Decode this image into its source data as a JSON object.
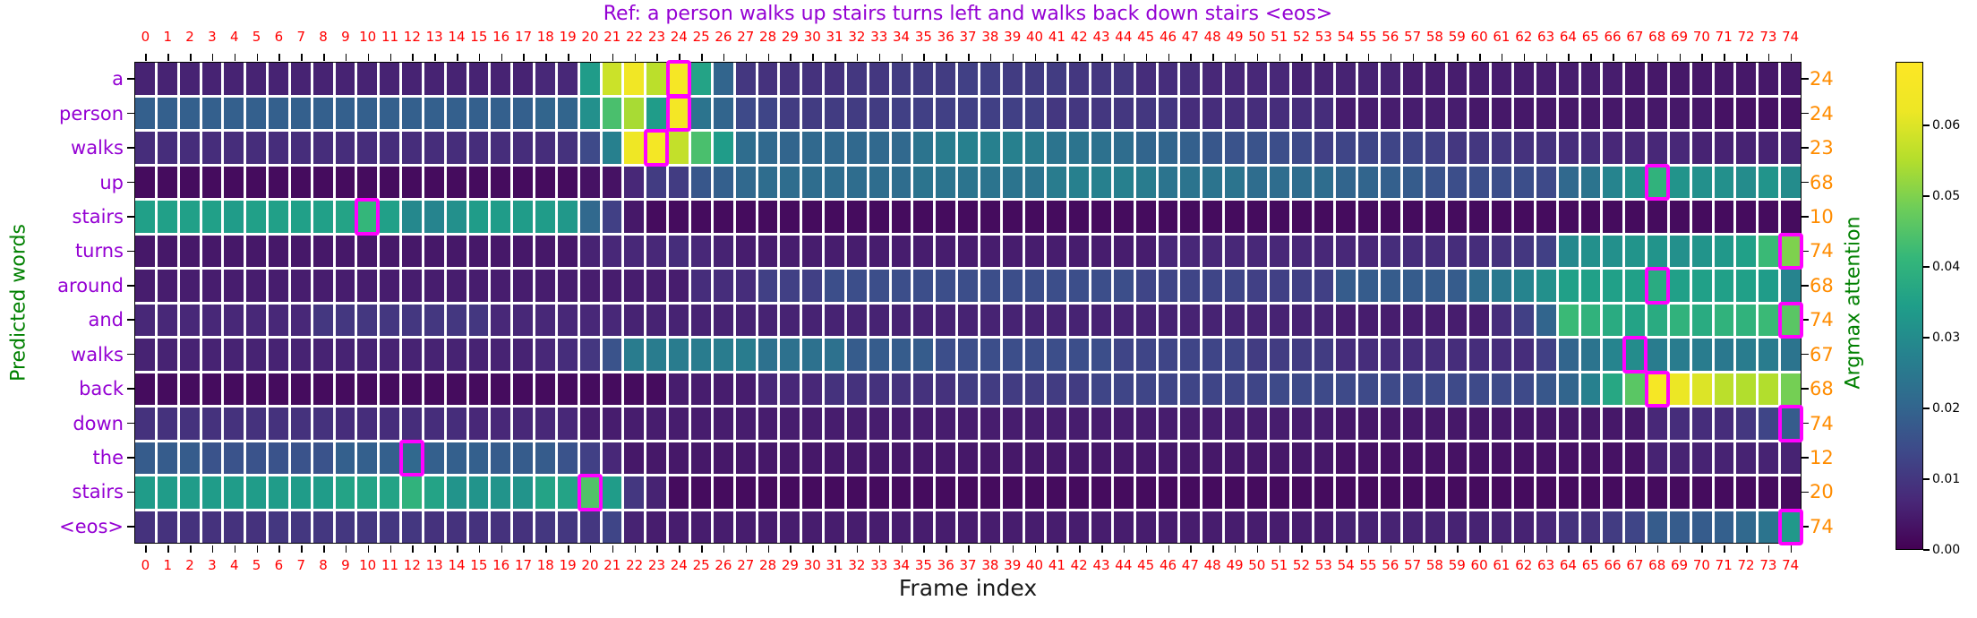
{
  "chart_data": {
    "type": "heatmap",
    "title": "Ref: a person walks up stairs turns left and walks back down stairs <eos>",
    "xlabel": "Frame index",
    "ylabel_left": "Predicted words",
    "ylabel_right": "Argmax attention",
    "predicted_words": [
      "a",
      "person",
      "walks",
      "up",
      "stairs",
      "turns",
      "around",
      "and",
      "walks",
      "back",
      "down",
      "the",
      "stairs",
      "<eos>"
    ],
    "argmax_attention": [
      24,
      24,
      23,
      68,
      10,
      74,
      68,
      74,
      67,
      68,
      74,
      12,
      20,
      74
    ],
    "x_tick_labels": [
      0,
      1,
      2,
      3,
      4,
      5,
      6,
      7,
      8,
      9,
      10,
      11,
      12,
      13,
      14,
      15,
      16,
      17,
      18,
      19,
      20,
      21,
      22,
      23,
      24,
      25,
      26,
      27,
      28,
      29,
      30,
      31,
      32,
      33,
      34,
      35,
      36,
      37,
      38,
      39,
      40,
      41,
      42,
      43,
      44,
      45,
      46,
      47,
      48,
      49,
      50,
      51,
      52,
      53,
      54,
      55,
      56,
      57,
      58,
      59,
      60,
      61,
      62,
      63,
      64,
      65,
      66,
      67,
      68,
      69,
      70,
      71,
      72,
      73,
      74
    ],
    "colorbar": {
      "ticks": [
        "0.00",
        "0.01",
        "0.02",
        "0.03",
        "0.04",
        "0.05",
        "0.06"
      ],
      "vmin": 0.0,
      "vmax": 0.069,
      "colormap": "viridis"
    },
    "colors": {
      "title": "#9400d3",
      "x_ticks": "#ff0000",
      "words": "#9400d3",
      "argmax": "#ff8c00",
      "axis_titles": "#008000",
      "highlight": "#ff00ff",
      "xlabel": "#1a1a1a"
    },
    "matrix": [
      [
        0.006,
        0.006,
        0.006,
        0.006,
        0.006,
        0.006,
        0.006,
        0.006,
        0.006,
        0.006,
        0.006,
        0.006,
        0.006,
        0.006,
        0.006,
        0.006,
        0.006,
        0.006,
        0.007,
        0.007,
        0.034,
        0.058,
        0.064,
        0.056,
        0.066,
        0.036,
        0.02,
        0.01,
        0.009,
        0.009,
        0.009,
        0.009,
        0.01,
        0.01,
        0.011,
        0.011,
        0.011,
        0.012,
        0.012,
        0.011,
        0.011,
        0.011,
        0.01,
        0.01,
        0.01,
        0.008,
        0.008,
        0.008,
        0.007,
        0.007,
        0.007,
        0.007,
        0.006,
        0.006,
        0.006,
        0.006,
        0.006,
        0.005,
        0.005,
        0.005,
        0.005,
        0.005,
        0.005,
        0.005,
        0.005,
        0.005,
        0.005,
        0.004,
        0.004,
        0.004,
        0.004,
        0.004,
        0.004,
        0.004,
        0.004
      ],
      [
        0.019,
        0.019,
        0.019,
        0.019,
        0.019,
        0.019,
        0.019,
        0.019,
        0.019,
        0.019,
        0.019,
        0.019,
        0.019,
        0.019,
        0.019,
        0.019,
        0.019,
        0.019,
        0.02,
        0.02,
        0.031,
        0.044,
        0.054,
        0.034,
        0.065,
        0.024,
        0.02,
        0.014,
        0.013,
        0.011,
        0.011,
        0.011,
        0.011,
        0.011,
        0.012,
        0.012,
        0.012,
        0.012,
        0.012,
        0.012,
        0.012,
        0.01,
        0.01,
        0.01,
        0.01,
        0.01,
        0.01,
        0.008,
        0.008,
        0.008,
        0.008,
        0.008,
        0.008,
        0.008,
        0.005,
        0.005,
        0.005,
        0.005,
        0.005,
        0.005,
        0.004,
        0.004,
        0.004,
        0.004,
        0.004,
        0.004,
        0.004,
        0.004,
        0.004,
        0.004,
        0.004,
        0.003,
        0.003,
        0.003,
        0.003
      ],
      [
        0.008,
        0.008,
        0.008,
        0.008,
        0.008,
        0.008,
        0.008,
        0.008,
        0.008,
        0.008,
        0.008,
        0.008,
        0.008,
        0.008,
        0.008,
        0.008,
        0.008,
        0.008,
        0.008,
        0.009,
        0.014,
        0.027,
        0.063,
        0.065,
        0.057,
        0.044,
        0.034,
        0.022,
        0.021,
        0.02,
        0.021,
        0.021,
        0.021,
        0.021,
        0.021,
        0.024,
        0.026,
        0.027,
        0.027,
        0.027,
        0.026,
        0.024,
        0.024,
        0.023,
        0.022,
        0.02,
        0.02,
        0.019,
        0.017,
        0.016,
        0.016,
        0.015,
        0.014,
        0.012,
        0.013,
        0.013,
        0.013,
        0.013,
        0.012,
        0.01,
        0.01,
        0.01,
        0.009,
        0.009,
        0.008,
        0.008,
        0.007,
        0.007,
        0.007,
        0.007,
        0.006,
        0.006,
        0.006,
        0.006,
        0.006
      ],
      [
        0.002,
        0.002,
        0.002,
        0.002,
        0.002,
        0.002,
        0.002,
        0.002,
        0.002,
        0.002,
        0.002,
        0.002,
        0.002,
        0.002,
        0.002,
        0.002,
        0.002,
        0.002,
        0.002,
        0.002,
        0.003,
        0.003,
        0.007,
        0.011,
        0.011,
        0.017,
        0.019,
        0.021,
        0.022,
        0.022,
        0.022,
        0.022,
        0.022,
        0.022,
        0.022,
        0.024,
        0.024,
        0.024,
        0.024,
        0.024,
        0.024,
        0.026,
        0.027,
        0.027,
        0.027,
        0.026,
        0.024,
        0.024,
        0.024,
        0.024,
        0.022,
        0.022,
        0.022,
        0.022,
        0.02,
        0.02,
        0.019,
        0.018,
        0.016,
        0.015,
        0.015,
        0.015,
        0.015,
        0.014,
        0.021,
        0.024,
        0.028,
        0.031,
        0.04,
        0.032,
        0.031,
        0.031,
        0.03,
        0.032,
        0.03
      ],
      [
        0.035,
        0.035,
        0.035,
        0.035,
        0.034,
        0.035,
        0.035,
        0.035,
        0.035,
        0.036,
        0.041,
        0.035,
        0.029,
        0.028,
        0.031,
        0.034,
        0.034,
        0.034,
        0.034,
        0.033,
        0.021,
        0.012,
        0.004,
        0.002,
        0.002,
        0.002,
        0.002,
        0.002,
        0.002,
        0.002,
        0.002,
        0.002,
        0.002,
        0.002,
        0.002,
        0.002,
        0.002,
        0.002,
        0.002,
        0.002,
        0.002,
        0.002,
        0.002,
        0.002,
        0.002,
        0.002,
        0.002,
        0.002,
        0.002,
        0.002,
        0.002,
        0.002,
        0.002,
        0.002,
        0.002,
        0.002,
        0.002,
        0.002,
        0.002,
        0.002,
        0.002,
        0.002,
        0.002,
        0.002,
        0.002,
        0.002,
        0.002,
        0.002,
        0.002,
        0.002,
        0.002,
        0.002,
        0.002,
        0.002,
        0.002
      ],
      [
        0.004,
        0.004,
        0.004,
        0.004,
        0.004,
        0.004,
        0.004,
        0.004,
        0.004,
        0.004,
        0.004,
        0.004,
        0.004,
        0.004,
        0.004,
        0.004,
        0.004,
        0.004,
        0.004,
        0.004,
        0.006,
        0.007,
        0.007,
        0.007,
        0.008,
        0.007,
        0.006,
        0.005,
        0.005,
        0.005,
        0.005,
        0.005,
        0.005,
        0.005,
        0.005,
        0.005,
        0.005,
        0.005,
        0.005,
        0.005,
        0.005,
        0.005,
        0.005,
        0.005,
        0.005,
        0.005,
        0.007,
        0.007,
        0.007,
        0.007,
        0.007,
        0.007,
        0.007,
        0.007,
        0.007,
        0.007,
        0.008,
        0.008,
        0.008,
        0.008,
        0.008,
        0.009,
        0.01,
        0.012,
        0.029,
        0.031,
        0.031,
        0.032,
        0.032,
        0.031,
        0.032,
        0.033,
        0.035,
        0.042,
        0.05
      ],
      [
        0.005,
        0.005,
        0.005,
        0.005,
        0.005,
        0.005,
        0.005,
        0.005,
        0.005,
        0.005,
        0.005,
        0.005,
        0.005,
        0.005,
        0.005,
        0.005,
        0.005,
        0.005,
        0.005,
        0.005,
        0.005,
        0.005,
        0.005,
        0.005,
        0.005,
        0.008,
        0.008,
        0.008,
        0.012,
        0.012,
        0.012,
        0.015,
        0.015,
        0.015,
        0.015,
        0.015,
        0.015,
        0.015,
        0.015,
        0.015,
        0.015,
        0.015,
        0.015,
        0.015,
        0.015,
        0.013,
        0.013,
        0.013,
        0.013,
        0.013,
        0.012,
        0.012,
        0.012,
        0.012,
        0.018,
        0.018,
        0.018,
        0.018,
        0.018,
        0.018,
        0.022,
        0.025,
        0.028,
        0.031,
        0.035,
        0.035,
        0.035,
        0.035,
        0.038,
        0.035,
        0.035,
        0.035,
        0.035,
        0.034,
        0.028
      ],
      [
        0.007,
        0.007,
        0.007,
        0.007,
        0.007,
        0.007,
        0.007,
        0.007,
        0.01,
        0.01,
        0.01,
        0.01,
        0.01,
        0.01,
        0.01,
        0.01,
        0.007,
        0.007,
        0.007,
        0.007,
        0.007,
        0.007,
        0.006,
        0.006,
        0.006,
        0.006,
        0.006,
        0.006,
        0.006,
        0.006,
        0.006,
        0.006,
        0.006,
        0.006,
        0.006,
        0.006,
        0.006,
        0.006,
        0.006,
        0.006,
        0.006,
        0.006,
        0.006,
        0.006,
        0.006,
        0.006,
        0.006,
        0.006,
        0.006,
        0.006,
        0.006,
        0.006,
        0.006,
        0.006,
        0.005,
        0.005,
        0.005,
        0.005,
        0.005,
        0.005,
        0.005,
        0.008,
        0.012,
        0.02,
        0.042,
        0.04,
        0.038,
        0.036,
        0.038,
        0.04,
        0.038,
        0.04,
        0.04,
        0.042,
        0.046
      ],
      [
        0.006,
        0.006,
        0.006,
        0.006,
        0.006,
        0.006,
        0.006,
        0.006,
        0.006,
        0.006,
        0.006,
        0.006,
        0.006,
        0.006,
        0.006,
        0.006,
        0.006,
        0.006,
        0.007,
        0.008,
        0.01,
        0.016,
        0.026,
        0.026,
        0.026,
        0.026,
        0.026,
        0.026,
        0.023,
        0.023,
        0.023,
        0.023,
        0.018,
        0.018,
        0.018,
        0.018,
        0.015,
        0.015,
        0.015,
        0.015,
        0.015,
        0.015,
        0.015,
        0.015,
        0.013,
        0.013,
        0.013,
        0.013,
        0.013,
        0.013,
        0.011,
        0.011,
        0.011,
        0.011,
        0.008,
        0.008,
        0.008,
        0.008,
        0.008,
        0.008,
        0.008,
        0.008,
        0.008,
        0.012,
        0.02,
        0.024,
        0.028,
        0.03,
        0.026,
        0.026,
        0.026,
        0.025,
        0.026,
        0.026,
        0.024
      ],
      [
        0.002,
        0.002,
        0.002,
        0.002,
        0.002,
        0.002,
        0.002,
        0.002,
        0.002,
        0.002,
        0.002,
        0.002,
        0.002,
        0.002,
        0.002,
        0.002,
        0.002,
        0.002,
        0.002,
        0.002,
        0.002,
        0.002,
        0.002,
        0.002,
        0.005,
        0.005,
        0.005,
        0.005,
        0.007,
        0.007,
        0.007,
        0.009,
        0.009,
        0.009,
        0.009,
        0.009,
        0.009,
        0.011,
        0.011,
        0.011,
        0.011,
        0.011,
        0.011,
        0.013,
        0.013,
        0.013,
        0.013,
        0.013,
        0.013,
        0.013,
        0.013,
        0.014,
        0.014,
        0.014,
        0.014,
        0.014,
        0.014,
        0.014,
        0.014,
        0.014,
        0.014,
        0.014,
        0.014,
        0.017,
        0.02,
        0.027,
        0.037,
        0.046,
        0.066,
        0.062,
        0.06,
        0.056,
        0.055,
        0.055,
        0.049
      ],
      [
        0.009,
        0.009,
        0.009,
        0.009,
        0.009,
        0.009,
        0.009,
        0.009,
        0.009,
        0.008,
        0.008,
        0.008,
        0.008,
        0.008,
        0.008,
        0.007,
        0.007,
        0.007,
        0.007,
        0.007,
        0.005,
        0.005,
        0.005,
        0.005,
        0.005,
        0.005,
        0.005,
        0.005,
        0.005,
        0.005,
        0.005,
        0.005,
        0.005,
        0.005,
        0.005,
        0.005,
        0.005,
        0.005,
        0.005,
        0.005,
        0.005,
        0.005,
        0.005,
        0.005,
        0.005,
        0.005,
        0.005,
        0.005,
        0.005,
        0.005,
        0.005,
        0.005,
        0.005,
        0.005,
        0.004,
        0.004,
        0.004,
        0.004,
        0.004,
        0.004,
        0.004,
        0.004,
        0.004,
        0.004,
        0.004,
        0.004,
        0.004,
        0.004,
        0.007,
        0.008,
        0.008,
        0.008,
        0.01,
        0.013,
        0.018
      ],
      [
        0.018,
        0.018,
        0.018,
        0.016,
        0.016,
        0.016,
        0.016,
        0.016,
        0.016,
        0.019,
        0.019,
        0.019,
        0.021,
        0.019,
        0.019,
        0.019,
        0.018,
        0.018,
        0.018,
        0.016,
        0.012,
        0.007,
        0.004,
        0.004,
        0.004,
        0.004,
        0.004,
        0.004,
        0.004,
        0.004,
        0.004,
        0.004,
        0.004,
        0.004,
        0.004,
        0.004,
        0.004,
        0.004,
        0.004,
        0.004,
        0.004,
        0.004,
        0.004,
        0.004,
        0.004,
        0.004,
        0.004,
        0.004,
        0.004,
        0.004,
        0.004,
        0.004,
        0.004,
        0.004,
        0.003,
        0.003,
        0.003,
        0.003,
        0.003,
        0.003,
        0.003,
        0.003,
        0.003,
        0.003,
        0.003,
        0.003,
        0.003,
        0.003,
        0.006,
        0.006,
        0.006,
        0.006,
        0.006,
        0.006,
        0.006
      ],
      [
        0.034,
        0.034,
        0.034,
        0.034,
        0.034,
        0.034,
        0.034,
        0.034,
        0.034,
        0.036,
        0.036,
        0.036,
        0.04,
        0.036,
        0.032,
        0.032,
        0.032,
        0.032,
        0.036,
        0.036,
        0.045,
        0.034,
        0.01,
        0.006,
        0.002,
        0.002,
        0.002,
        0.002,
        0.002,
        0.002,
        0.002,
        0.002,
        0.002,
        0.002,
        0.002,
        0.002,
        0.002,
        0.002,
        0.002,
        0.002,
        0.002,
        0.002,
        0.002,
        0.002,
        0.002,
        0.002,
        0.002,
        0.002,
        0.002,
        0.002,
        0.002,
        0.002,
        0.002,
        0.002,
        0.002,
        0.002,
        0.002,
        0.002,
        0.002,
        0.002,
        0.002,
        0.002,
        0.002,
        0.002,
        0.002,
        0.002,
        0.002,
        0.002,
        0.002,
        0.002,
        0.002,
        0.002,
        0.002,
        0.002,
        0.002
      ],
      [
        0.009,
        0.009,
        0.009,
        0.009,
        0.009,
        0.009,
        0.01,
        0.01,
        0.01,
        0.01,
        0.01,
        0.01,
        0.01,
        0.009,
        0.009,
        0.009,
        0.009,
        0.009,
        0.01,
        0.01,
        0.01,
        0.013,
        0.006,
        0.005,
        0.005,
        0.005,
        0.005,
        0.005,
        0.005,
        0.005,
        0.005,
        0.005,
        0.005,
        0.005,
        0.005,
        0.005,
        0.005,
        0.005,
        0.005,
        0.005,
        0.005,
        0.005,
        0.005,
        0.005,
        0.005,
        0.005,
        0.005,
        0.005,
        0.005,
        0.005,
        0.005,
        0.005,
        0.005,
        0.005,
        0.006,
        0.006,
        0.006,
        0.006,
        0.006,
        0.006,
        0.006,
        0.006,
        0.006,
        0.007,
        0.009,
        0.009,
        0.011,
        0.013,
        0.018,
        0.018,
        0.018,
        0.019,
        0.021,
        0.024,
        0.033
      ]
    ]
  }
}
